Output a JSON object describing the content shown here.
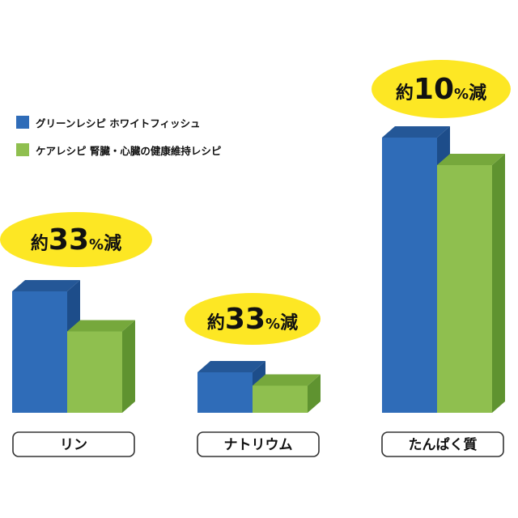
{
  "chart_data": {
    "type": "bar",
    "categories": [
      "リン",
      "ナトリウム",
      "たんぱく質"
    ],
    "series": [
      {
        "name": "グリーンレシピ ホワイトフィッシュ",
        "values": [
          100,
          100,
          100
        ]
      },
      {
        "name": "ケアレシピ 腎臓・心臓の健康維持レシピ",
        "values": [
          67,
          67,
          90
        ]
      }
    ],
    "annotations": [
      {
        "prefix": "約",
        "number": "33",
        "unit": "%",
        "suffix": "減"
      },
      {
        "prefix": "約",
        "number": "33",
        "unit": "%",
        "suffix": "減"
      },
      {
        "prefix": "約",
        "number": "10",
        "unit": "%",
        "suffix": "減"
      }
    ],
    "legend_position": "top-left",
    "grid": false,
    "colors": {
      "series1": {
        "front": "#2f6cb8",
        "top": "#245797",
        "side": "#1d4d8a"
      },
      "series2": {
        "front": "#8fbf4f",
        "top": "#76a83c",
        "side": "#5f9330"
      },
      "badge": "#fde724",
      "label_border": "#333333",
      "text": "#111111"
    }
  }
}
